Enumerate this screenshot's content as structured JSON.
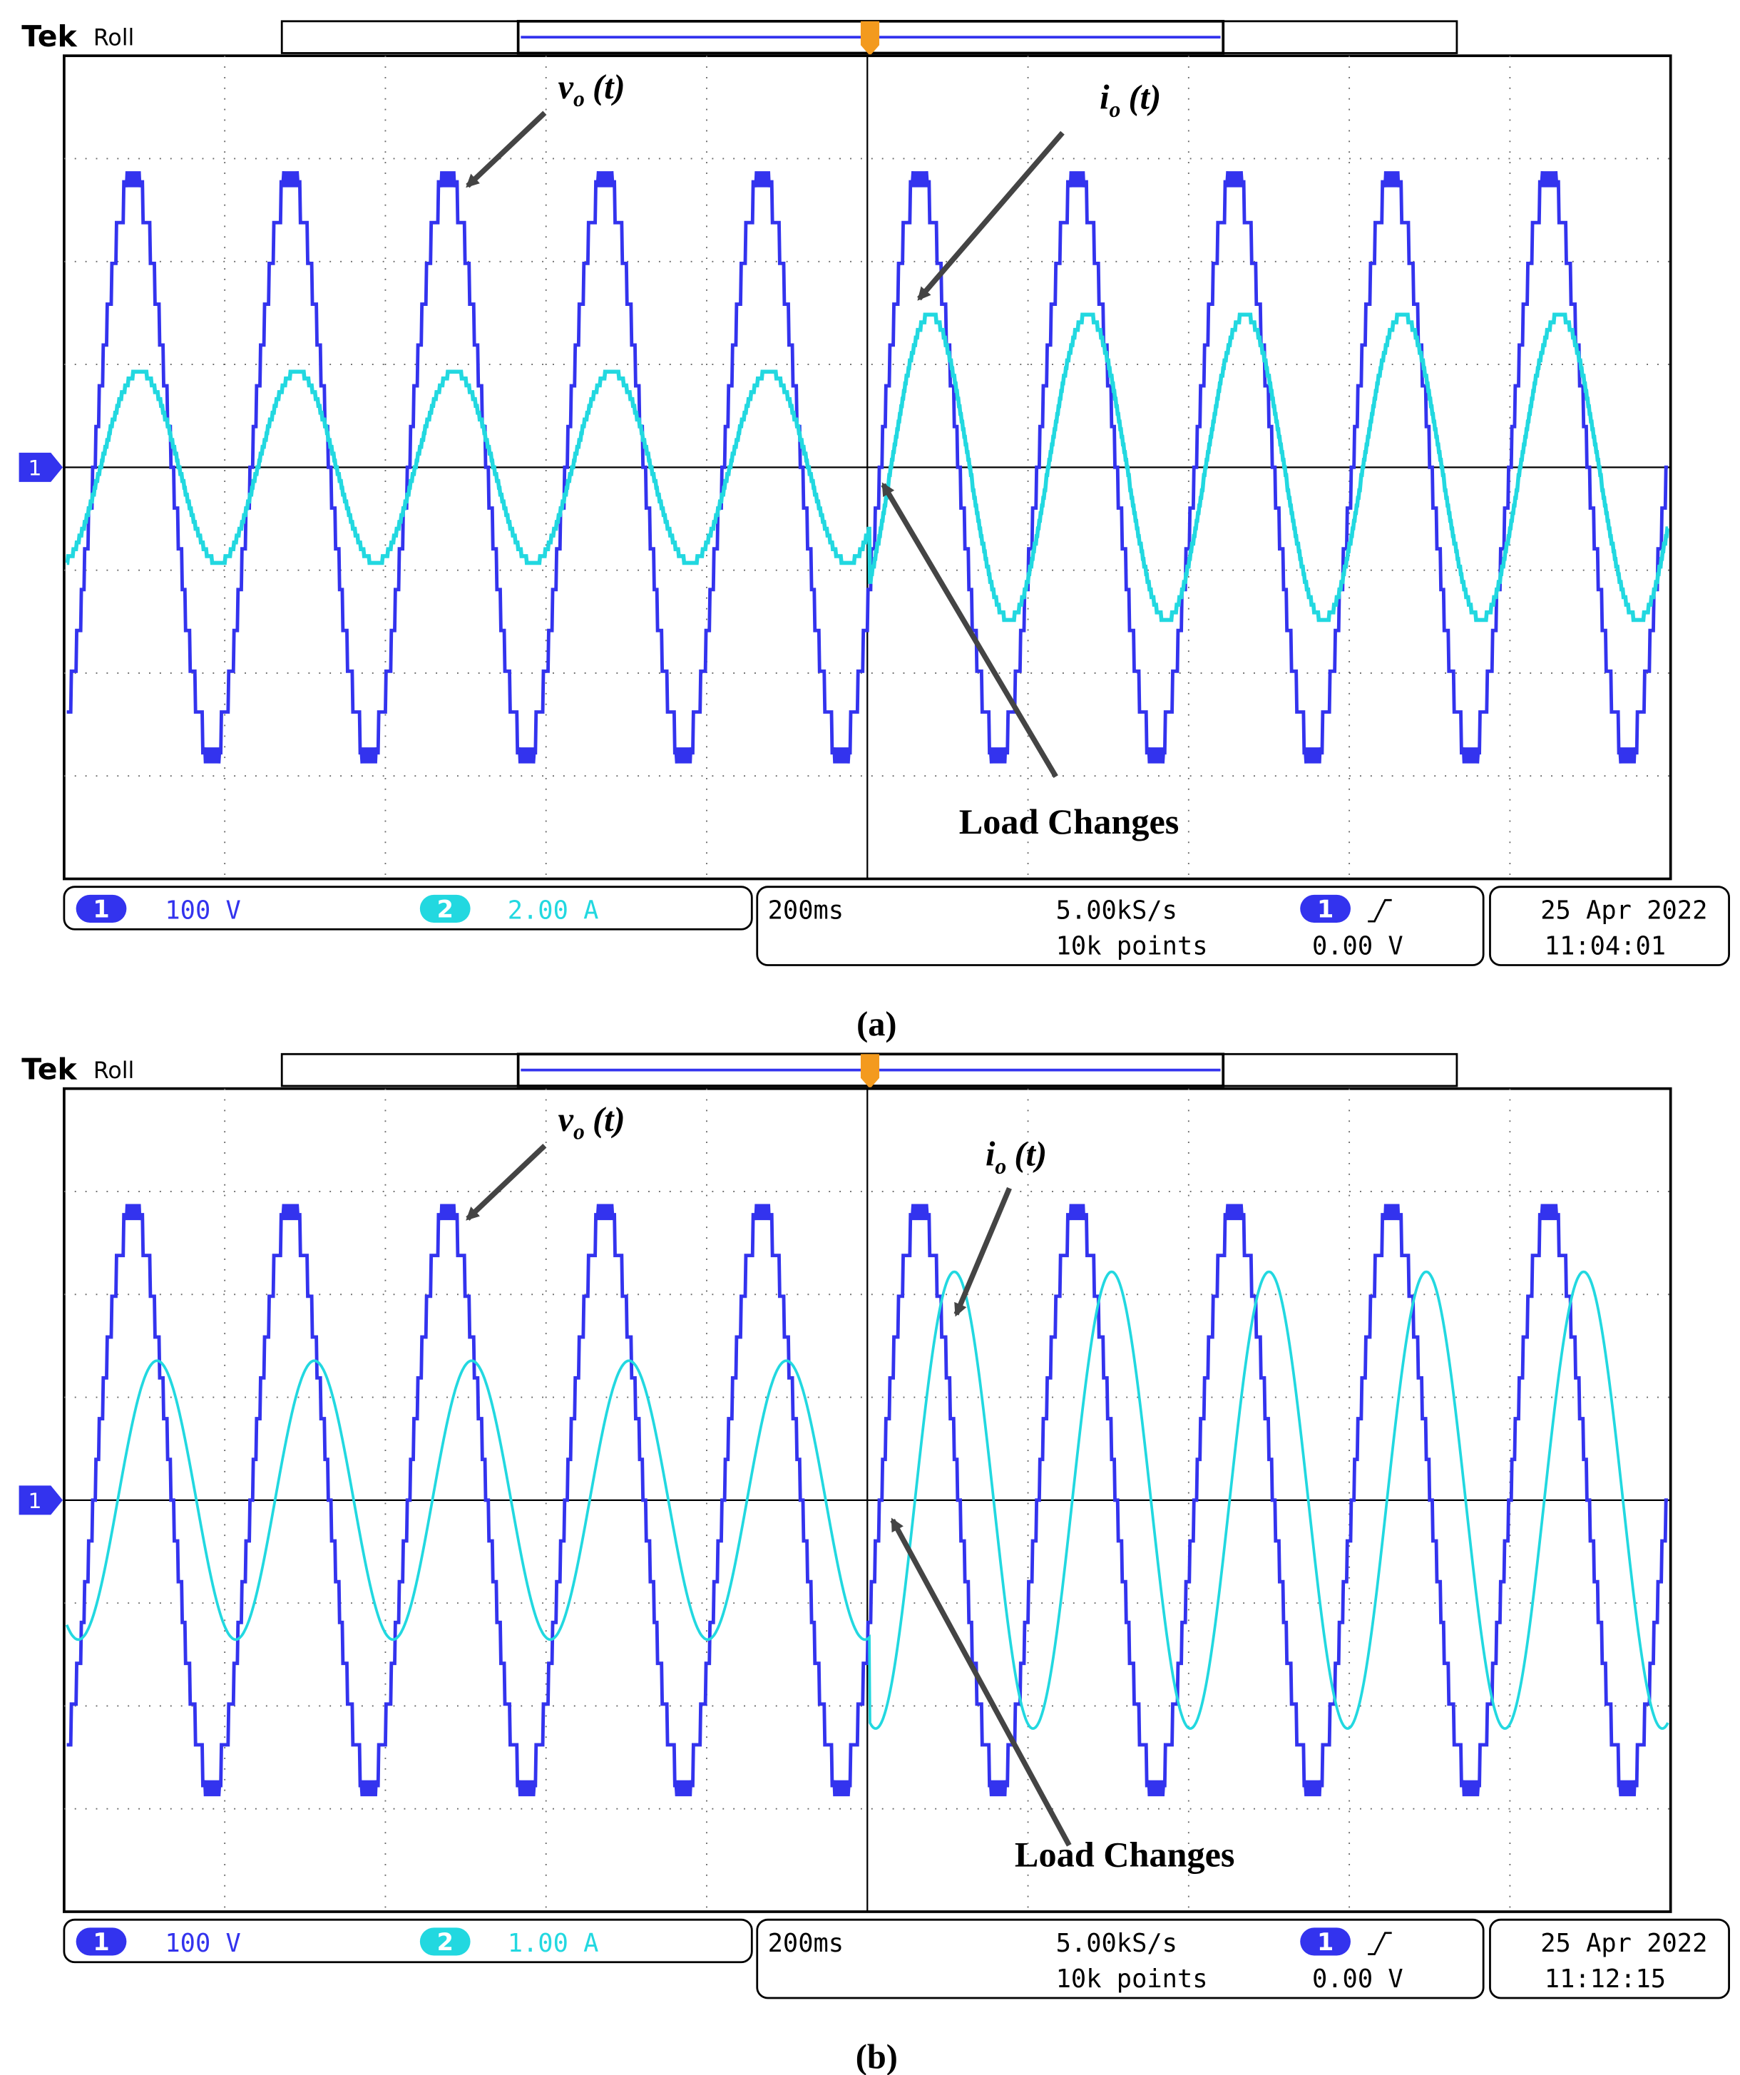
{
  "panels": [
    {
      "brand": "Tek",
      "mode": "Roll",
      "ground_marker": "1",
      "voltage_label": {
        "symbol": "v",
        "sub": "o",
        "arg": "(t)"
      },
      "current_label": {
        "symbol": "i",
        "sub": "o",
        "arg": "(t)"
      },
      "load_label": "Load Changes",
      "ch1": {
        "number": "1",
        "scale": "100 V"
      },
      "ch2": {
        "number": "2",
        "scale": "2.00 A"
      },
      "timebase": "200ms",
      "sample_rate": "5.00kS/s",
      "record_length": "10k points",
      "trigger": {
        "source": "1",
        "level": "0.00 V"
      },
      "date": "25 Apr  2022",
      "time": "11:04:01",
      "caption": "(a)"
    },
    {
      "brand": "Tek",
      "mode": "Roll",
      "ground_marker": "1",
      "voltage_label": {
        "symbol": "v",
        "sub": "o",
        "arg": "(t)"
      },
      "current_label": {
        "symbol": "i",
        "sub": "o",
        "arg": "(t)"
      },
      "load_label": "Load Changes",
      "ch1": {
        "number": "1",
        "scale": "100 V"
      },
      "ch2": {
        "number": "2",
        "scale": "1.00 A"
      },
      "timebase": "200ms",
      "sample_rate": "5.00kS/s",
      "record_length": "10k points",
      "trigger": {
        "source": "1",
        "level": "0.00 V"
      },
      "date": "25 Apr  2022",
      "time": "11:12:15",
      "caption": "(b)"
    }
  ]
}
